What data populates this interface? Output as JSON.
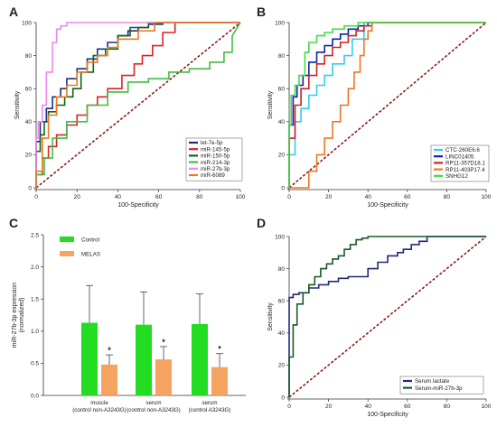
{
  "panels": {
    "A": "A",
    "B": "B",
    "C": "C",
    "D": "D"
  },
  "colors": {
    "reference": "#8b1a1a",
    "control": "#22dd22",
    "melas": "#f4a460",
    "error_bar": "#444444"
  },
  "chart_data": [
    {
      "panel": "A",
      "type": "line",
      "title": "",
      "xlabel": "100-Specificity",
      "ylabel": "Sensitivity",
      "xlim": [
        0,
        100
      ],
      "ylim": [
        0,
        100
      ],
      "xticks": [
        0,
        20,
        40,
        60,
        80,
        100
      ],
      "yticks": [
        0,
        20,
        40,
        60,
        80,
        100
      ],
      "legend_position": "bottom-right",
      "reference_line": true,
      "series": [
        {
          "name": "let-7e-5p",
          "color": "#1a2f8c",
          "x": [
            0,
            0,
            2,
            2,
            5,
            5,
            8,
            8,
            12,
            12,
            15,
            15,
            20,
            20,
            25,
            25,
            30,
            30,
            35,
            35,
            40,
            40,
            45,
            45,
            50,
            50,
            55,
            55,
            62,
            62,
            100
          ],
          "y": [
            0,
            28,
            28,
            40,
            40,
            48,
            48,
            55,
            55,
            60,
            60,
            66,
            66,
            72,
            72,
            78,
            78,
            84,
            84,
            88,
            88,
            92,
            92,
            95,
            95,
            97,
            97,
            99,
            99,
            100,
            100
          ]
        },
        {
          "name": "miR-145-5p",
          "color": "#dd2222",
          "x": [
            0,
            0,
            3,
            3,
            6,
            6,
            10,
            10,
            15,
            15,
            20,
            20,
            25,
            25,
            30,
            30,
            35,
            35,
            42,
            42,
            48,
            48,
            52,
            52,
            57,
            57,
            62,
            62,
            68,
            68,
            100
          ],
          "y": [
            0,
            8,
            8,
            18,
            18,
            25,
            25,
            32,
            32,
            38,
            38,
            44,
            44,
            50,
            50,
            55,
            55,
            60,
            60,
            68,
            68,
            75,
            75,
            80,
            80,
            86,
            86,
            94,
            94,
            100,
            100
          ]
        },
        {
          "name": "miR-150-5p",
          "color": "#116611",
          "x": [
            0,
            0,
            2,
            2,
            4,
            4,
            6,
            6,
            10,
            10,
            14,
            14,
            18,
            18,
            22,
            22,
            28,
            28,
            34,
            34,
            40,
            40,
            46,
            46,
            55,
            55,
            100
          ],
          "y": [
            0,
            22,
            22,
            32,
            32,
            40,
            40,
            46,
            46,
            50,
            50,
            55,
            55,
            60,
            60,
            70,
            70,
            80,
            80,
            84,
            84,
            92,
            92,
            97,
            97,
            100,
            100
          ]
        },
        {
          "name": "miR-214-3p",
          "color": "#44bb44",
          "x": [
            0,
            0,
            4,
            4,
            8,
            8,
            15,
            15,
            25,
            25,
            35,
            35,
            45,
            45,
            55,
            55,
            65,
            65,
            75,
            75,
            85,
            85,
            92,
            92,
            96,
            96,
            100
          ],
          "y": [
            0,
            8,
            8,
            18,
            18,
            30,
            30,
            40,
            40,
            50,
            50,
            58,
            58,
            64,
            64,
            66,
            66,
            70,
            70,
            72,
            72,
            76,
            76,
            82,
            82,
            92,
            100
          ]
        },
        {
          "name": "miR-27b-3p",
          "color": "#ee88ee",
          "x": [
            0,
            0,
            1,
            1,
            3,
            3,
            5,
            5,
            8,
            8,
            10,
            10,
            12,
            12,
            15,
            15,
            100
          ],
          "y": [
            0,
            30,
            30,
            40,
            40,
            50,
            50,
            70,
            70,
            88,
            88,
            96,
            96,
            98,
            98,
            100,
            100
          ]
        },
        {
          "name": "miR-6089",
          "color": "#f07820",
          "x": [
            0,
            0,
            3,
            3,
            6,
            6,
            10,
            10,
            15,
            15,
            20,
            20,
            25,
            25,
            30,
            30,
            35,
            35,
            40,
            40,
            50,
            50,
            58,
            58,
            100
          ],
          "y": [
            0,
            10,
            10,
            30,
            30,
            44,
            44,
            55,
            55,
            62,
            62,
            70,
            70,
            76,
            76,
            80,
            80,
            85,
            85,
            90,
            90,
            95,
            95,
            100,
            100
          ]
        }
      ]
    },
    {
      "panel": "B",
      "type": "line",
      "title": "",
      "xlabel": "100-Specificity",
      "ylabel": "Sensitivity",
      "xlim": [
        0,
        100
      ],
      "ylim": [
        0,
        100
      ],
      "xticks": [
        0,
        20,
        40,
        60,
        80,
        100
      ],
      "yticks": [
        0,
        20,
        40,
        60,
        80,
        100
      ],
      "legend_position": "bottom-right",
      "reference_line": true,
      "series": [
        {
          "name": "CTC-260E6.6",
          "color": "#33ccee",
          "x": [
            0,
            0,
            3,
            3,
            6,
            6,
            10,
            10,
            14,
            14,
            18,
            18,
            22,
            22,
            28,
            28,
            32,
            32,
            38,
            38,
            100
          ],
          "y": [
            0,
            20,
            20,
            40,
            40,
            48,
            48,
            56,
            56,
            62,
            62,
            68,
            68,
            75,
            75,
            80,
            80,
            90,
            90,
            100,
            100
          ]
        },
        {
          "name": "LINC01405",
          "color": "#1122aa",
          "x": [
            0,
            0,
            2,
            2,
            4,
            4,
            7,
            7,
            10,
            10,
            14,
            14,
            18,
            18,
            22,
            22,
            26,
            26,
            30,
            30,
            35,
            35,
            40,
            40,
            100
          ],
          "y": [
            0,
            38,
            38,
            55,
            55,
            62,
            62,
            68,
            68,
            76,
            76,
            82,
            82,
            86,
            86,
            90,
            90,
            93,
            93,
            96,
            96,
            98,
            98,
            100,
            100
          ]
        },
        {
          "name": "RP11-357D18.1",
          "color": "#cc2222",
          "x": [
            0,
            0,
            3,
            3,
            6,
            6,
            10,
            10,
            14,
            14,
            18,
            18,
            22,
            22,
            26,
            26,
            30,
            30,
            34,
            34,
            38,
            38,
            42,
            42,
            100
          ],
          "y": [
            0,
            30,
            30,
            50,
            50,
            60,
            60,
            68,
            68,
            75,
            75,
            80,
            80,
            85,
            85,
            88,
            88,
            92,
            92,
            95,
            95,
            98,
            98,
            100,
            100
          ]
        },
        {
          "name": "RP11-403P17.4",
          "color": "#ee7722",
          "x": [
            0,
            0,
            10,
            10,
            14,
            14,
            18,
            18,
            22,
            22,
            26,
            26,
            30,
            30,
            33,
            33,
            36,
            36,
            38,
            38,
            40,
            40,
            42,
            42,
            100
          ],
          "y": [
            0,
            0,
            0,
            10,
            10,
            20,
            20,
            30,
            30,
            40,
            40,
            50,
            50,
            60,
            60,
            70,
            70,
            80,
            80,
            90,
            90,
            95,
            95,
            100,
            100
          ]
        },
        {
          "name": "SNHG12",
          "color": "#44dd44",
          "x": [
            0,
            0,
            1,
            1,
            3,
            3,
            5,
            5,
            8,
            8,
            10,
            10,
            14,
            14,
            18,
            18,
            22,
            22,
            28,
            28,
            35,
            35,
            100
          ],
          "y": [
            0,
            38,
            38,
            56,
            56,
            62,
            62,
            68,
            68,
            82,
            82,
            88,
            88,
            92,
            92,
            94,
            94,
            96,
            96,
            98,
            98,
            100,
            100
          ]
        }
      ]
    },
    {
      "panel": "C",
      "type": "bar",
      "title": "",
      "ylabel": "miR-27b-3p expression\n(normalized)",
      "ylim": [
        0,
        2.5
      ],
      "yticks": [
        "0.0",
        "0.5",
        "1.0",
        "1.5",
        "2.0",
        "2.5"
      ],
      "categories": [
        {
          "line1": "muscle",
          "line2": "(control   non-A3243G)"
        },
        {
          "line1": "serum",
          "line2": "(control   non-A3243G)"
        },
        {
          "line1": "serum",
          "line2": "(control     A3243G)"
        }
      ],
      "legend_position": "top-left",
      "series": [
        {
          "name": "Control",
          "values": [
            1.13,
            1.1,
            1.11
          ],
          "errors": [
            0.58,
            0.51,
            0.47
          ]
        },
        {
          "name": "MELAS",
          "values": [
            0.48,
            0.56,
            0.44
          ],
          "errors": [
            0.15,
            0.2,
            0.21
          ]
        }
      ],
      "significance": [
        "*",
        "*",
        "*"
      ]
    },
    {
      "panel": "D",
      "type": "line",
      "title": "",
      "xlabel": "100-Specificity",
      "ylabel": "Sensitivity",
      "xlim": [
        0,
        100
      ],
      "ylim": [
        0,
        100
      ],
      "xticks": [
        0,
        20,
        40,
        60,
        80,
        100
      ],
      "yticks": [
        0,
        20,
        40,
        60,
        80,
        100
      ],
      "legend_position": "bottom-right",
      "reference_line": true,
      "series": [
        {
          "name": "Serum lactate",
          "color": "#222a77",
          "x": [
            0,
            0,
            2,
            2,
            5,
            5,
            10,
            10,
            15,
            15,
            20,
            20,
            25,
            25,
            30,
            30,
            40,
            40,
            45,
            45,
            50,
            50,
            55,
            55,
            58,
            58,
            62,
            62,
            66,
            66,
            70,
            70,
            100
          ],
          "y": [
            0,
            62,
            62,
            64,
            64,
            65,
            65,
            68,
            68,
            70,
            70,
            72,
            72,
            74,
            74,
            75,
            75,
            80,
            80,
            84,
            84,
            88,
            88,
            90,
            90,
            92,
            92,
            95,
            95,
            97,
            97,
            100,
            100
          ]
        },
        {
          "name": "Serum-miR-27b-3p",
          "color": "#1a5a2a",
          "x": [
            0,
            0,
            2,
            2,
            4,
            4,
            7,
            7,
            10,
            10,
            13,
            13,
            16,
            16,
            19,
            19,
            22,
            22,
            25,
            25,
            28,
            28,
            31,
            31,
            34,
            34,
            37,
            37,
            40,
            40,
            100
          ],
          "y": [
            0,
            25,
            25,
            45,
            45,
            58,
            58,
            65,
            65,
            70,
            70,
            75,
            75,
            80,
            80,
            83,
            83,
            86,
            86,
            88,
            88,
            92,
            92,
            95,
            95,
            98,
            98,
            99,
            99,
            100,
            100
          ]
        }
      ]
    }
  ]
}
